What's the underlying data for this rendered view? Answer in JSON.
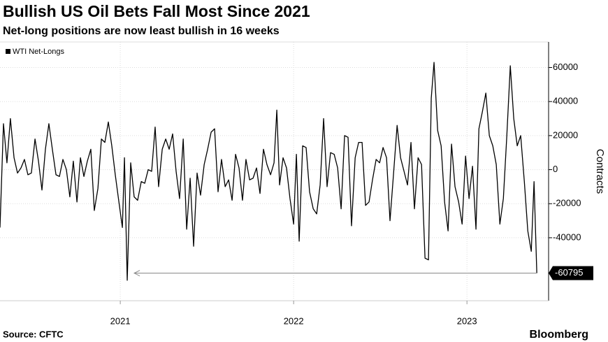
{
  "chart_data": {
    "type": "line",
    "title": "Bullish US Oil Bets Fall Most Since 2021",
    "subtitle": "Net-long positions are now least bullish in 16 weeks",
    "y_label": "Contracts",
    "source": "Source: CFTC",
    "brand": "Bloomberg",
    "x": [
      2020.306,
      2020.326,
      2020.346,
      2020.366,
      2020.387,
      2020.407,
      2020.427,
      2020.447,
      2020.467,
      2020.487,
      2020.508,
      2020.528,
      2020.548,
      2020.568,
      2020.588,
      2020.608,
      2020.629,
      2020.649,
      2020.669,
      2020.689,
      2020.709,
      2020.729,
      2020.75,
      2020.77,
      2020.79,
      2020.81,
      2020.83,
      2020.85,
      2020.871,
      2020.891,
      2020.911,
      2020.931,
      2020.951,
      2020.971,
      2020.992,
      2021.012,
      2021.024,
      2021.04,
      2021.06,
      2021.08,
      2021.1,
      2021.121,
      2021.141,
      2021.161,
      2021.181,
      2021.201,
      2021.221,
      2021.242,
      2021.262,
      2021.282,
      2021.302,
      2021.322,
      2021.342,
      2021.363,
      2021.383,
      2021.403,
      2021.423,
      2021.443,
      2021.463,
      2021.484,
      2021.504,
      2021.524,
      2021.544,
      2021.564,
      2021.584,
      2021.605,
      2021.625,
      2021.645,
      2021.665,
      2021.685,
      2021.705,
      2021.725,
      2021.746,
      2021.766,
      2021.786,
      2021.806,
      2021.826,
      2021.846,
      2021.867,
      2021.887,
      2021.903,
      2021.919,
      2021.939,
      2021.959,
      2021.979,
      2022.0,
      2022.016,
      2022.032,
      2022.052,
      2022.072,
      2022.092,
      2022.113,
      2022.133,
      2022.153,
      2022.173,
      2022.193,
      2022.213,
      2022.234,
      2022.254,
      2022.274,
      2022.294,
      2022.314,
      2022.334,
      2022.355,
      2022.375,
      2022.395,
      2022.415,
      2022.435,
      2022.455,
      2022.476,
      2022.496,
      2022.516,
      2022.536,
      2022.556,
      2022.576,
      2022.597,
      2022.617,
      2022.637,
      2022.657,
      2022.677,
      2022.697,
      2022.718,
      2022.738,
      2022.758,
      2022.778,
      2022.794,
      2022.81,
      2022.831,
      2022.851,
      2022.871,
      2022.891,
      2022.911,
      2022.931,
      2022.952,
      2022.972,
      2022.992,
      2023.012,
      2023.032,
      2023.052,
      2023.069,
      2023.089,
      2023.109,
      2023.129,
      2023.149,
      2023.169,
      2023.19,
      2023.21,
      2023.23,
      2023.25,
      2023.27,
      2023.29,
      2023.31,
      2023.331,
      2023.351,
      2023.371,
      2023.387,
      2023.403
    ],
    "series": [
      {
        "name": "WTI Net-Longs",
        "color": "#000000",
        "values": [
          -34000,
          27000,
          4000,
          30000,
          7000,
          -2000,
          1000,
          6000,
          -3000,
          -2000,
          18000,
          5000,
          -12000,
          12000,
          27000,
          12000,
          -3000,
          -4000,
          6000,
          0,
          -16000,
          5000,
          -19000,
          7000,
          -4000,
          5000,
          12000,
          -24000,
          -11000,
          18000,
          16000,
          28000,
          14000,
          -3000,
          -19000,
          -34000,
          7000,
          -65000,
          4000,
          -16000,
          -18000,
          -7000,
          -8000,
          0,
          -1000,
          25000,
          -10000,
          12000,
          18000,
          12000,
          21000,
          -1000,
          -17000,
          18000,
          -35000,
          -5000,
          -45000,
          -2000,
          -15000,
          3000,
          12000,
          22000,
          24000,
          -13000,
          6000,
          -10000,
          -6000,
          -18000,
          9000,
          1000,
          -18000,
          6000,
          -6000,
          -5000,
          1000,
          -14000,
          12000,
          3000,
          -3000,
          4000,
          35000,
          -9000,
          7000,
          1000,
          -17000,
          -32000,
          9000,
          -42000,
          14000,
          13000,
          -13000,
          -23000,
          -26000,
          -9000,
          30000,
          -10000,
          10000,
          9000,
          1000,
          -23000,
          20000,
          19000,
          -33000,
          7000,
          16000,
          16000,
          -21000,
          -19000,
          -6000,
          6000,
          4000,
          13000,
          7000,
          -30000,
          -3000,
          26000,
          7000,
          -1000,
          -9000,
          16000,
          -23000,
          7000,
          3000,
          -52000,
          -53000,
          42000,
          63000,
          23000,
          14000,
          -19000,
          -36000,
          15000,
          -10000,
          -19000,
          -32000,
          8000,
          -17000,
          2000,
          -35000,
          24000,
          34000,
          45000,
          20000,
          14000,
          3000,
          -32000,
          -17000,
          20000,
          61000,
          30000,
          14000,
          20000,
          -7000,
          -36000,
          -48000,
          -7000,
          -60795
        ]
      }
    ],
    "xlim": [
      2020.306,
      2023.471
    ],
    "xticks": [
      2021,
      2022,
      2023
    ],
    "ylim": [
      -77000,
      75000
    ],
    "yticks": [
      -40000,
      -20000,
      0,
      20000,
      40000,
      60000
    ],
    "grid": true
  }
}
